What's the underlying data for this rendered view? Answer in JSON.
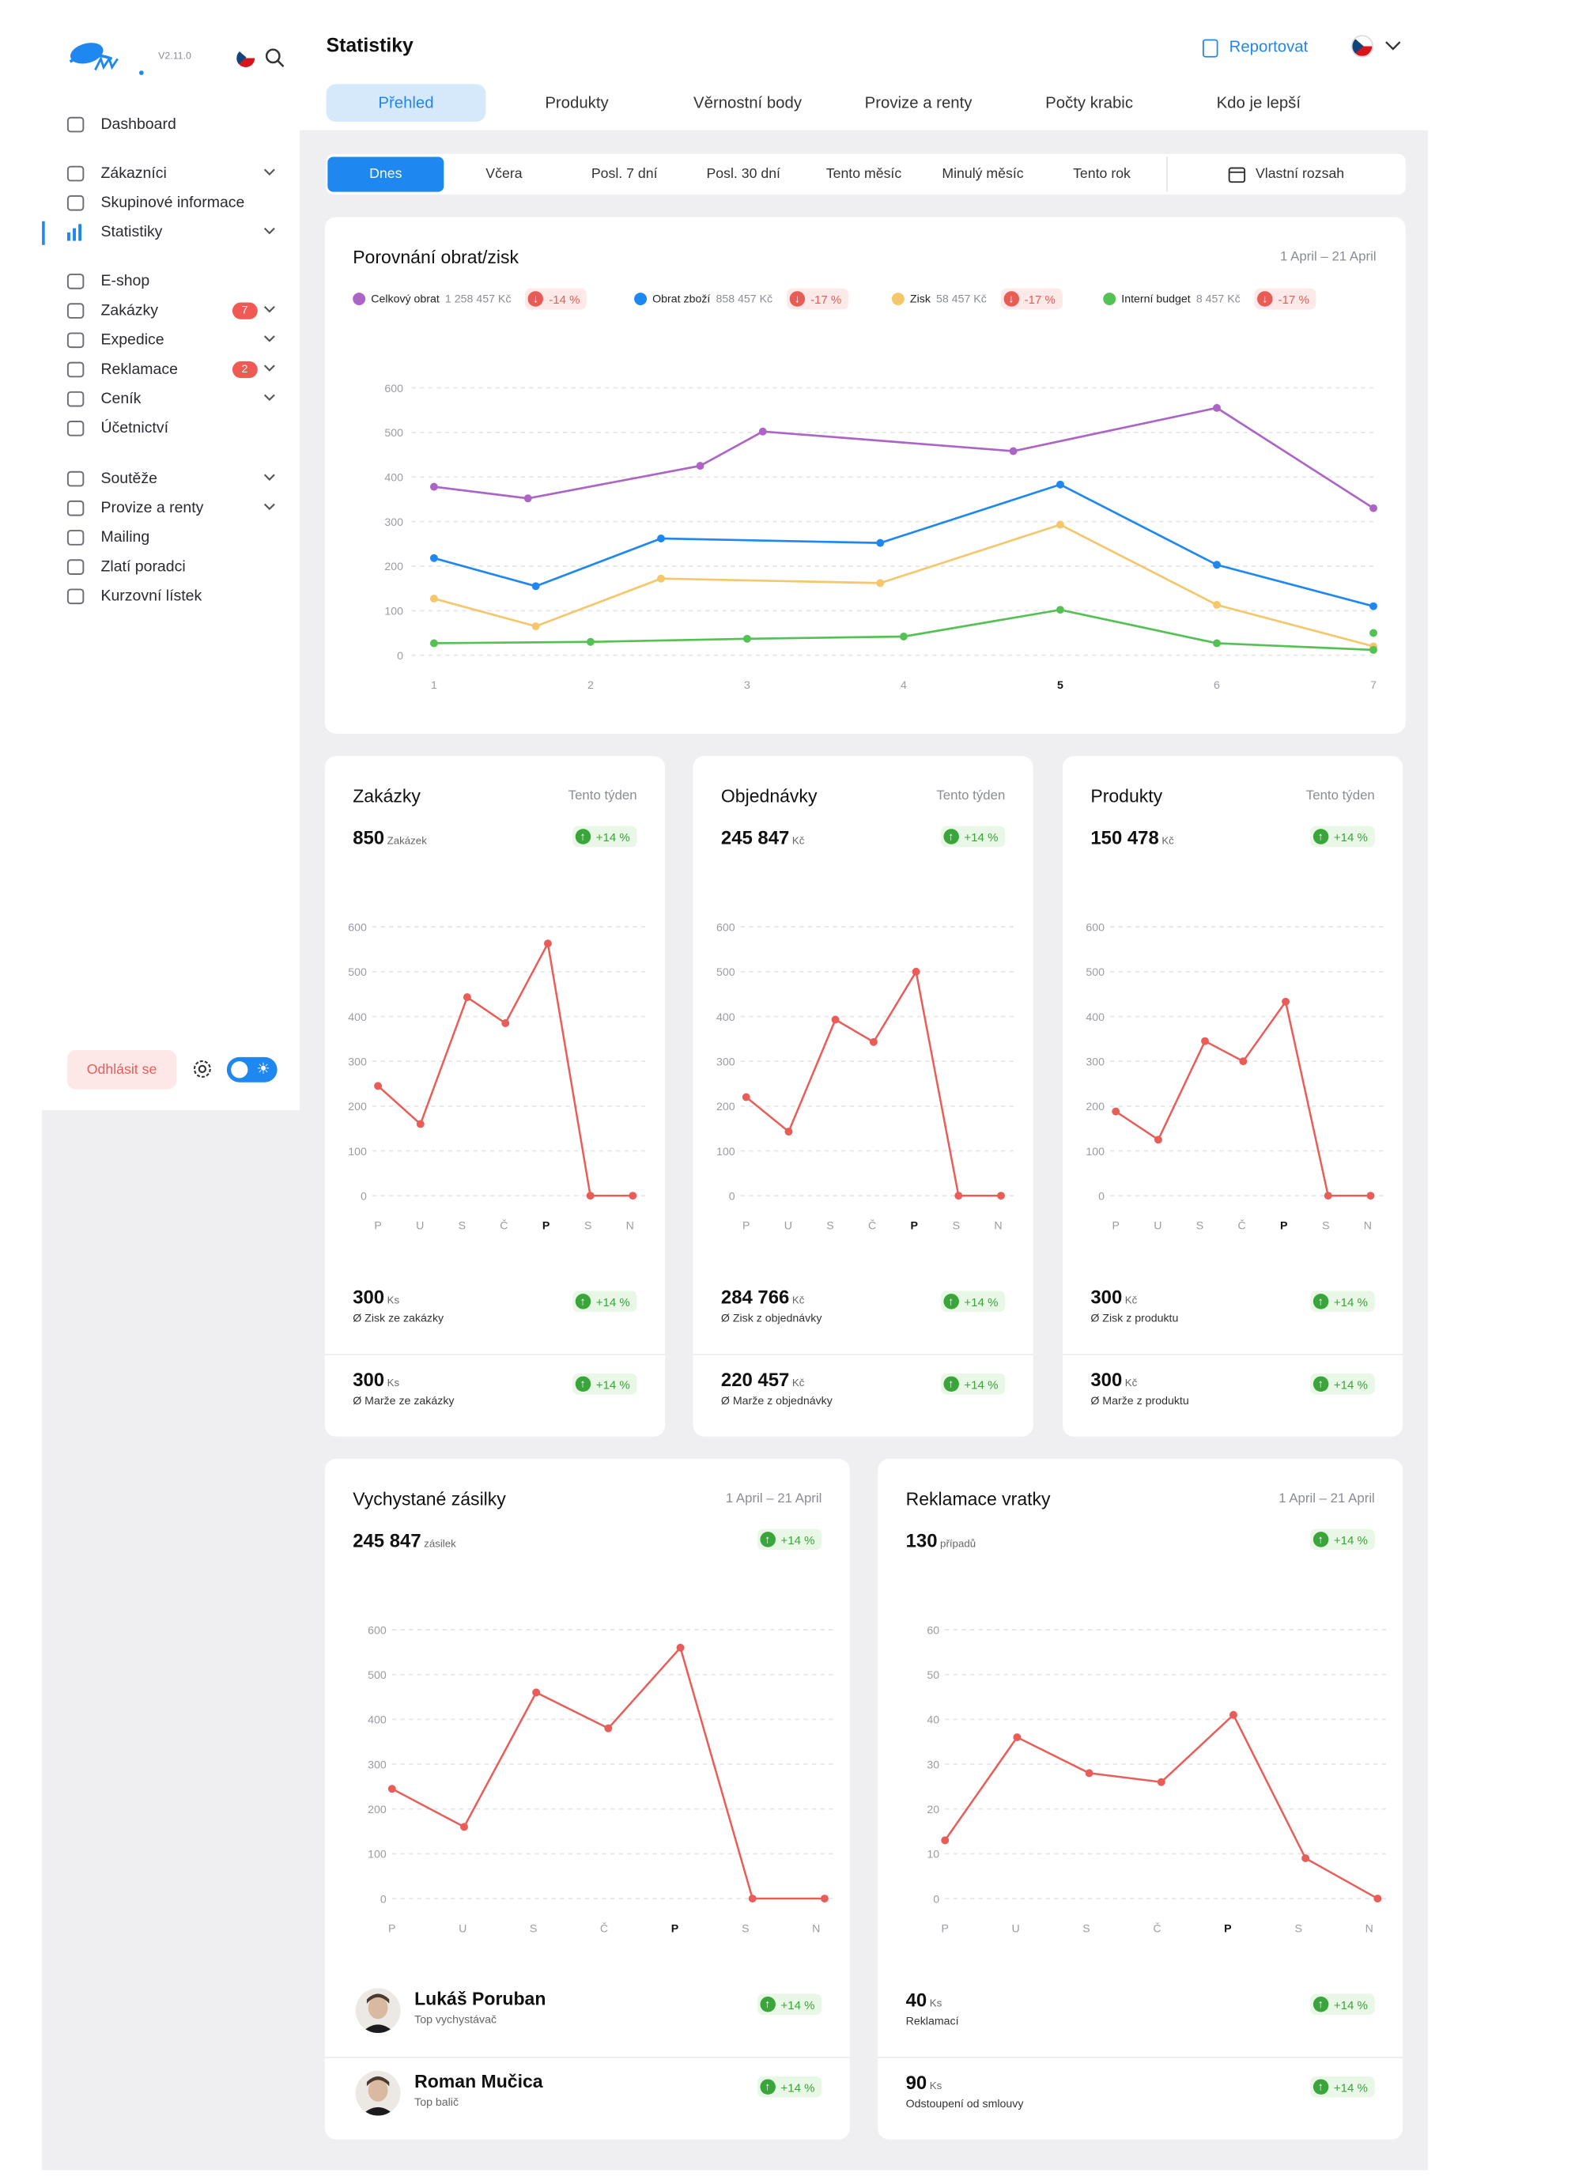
{
  "app": {
    "version": "V2.11.0"
  },
  "sidebar": {
    "items": [
      {
        "label": "Dashboard",
        "icon": "home-icon"
      },
      {
        "label": "Zákazníci",
        "icon": "customer-icon"
      },
      {
        "label": "Skupinové informace",
        "icon": "group-search-icon"
      },
      {
        "label": "Statistiky",
        "icon": "bar-chart-icon"
      },
      {
        "label": "E-shop",
        "icon": "cart-icon"
      },
      {
        "label": "Zakázky",
        "icon": "document-icon",
        "badge": "7"
      },
      {
        "label": "Expedice",
        "icon": "truck-icon"
      },
      {
        "label": "Reklamace",
        "icon": "return-icon",
        "badge": "2"
      },
      {
        "label": "Ceník",
        "icon": "clipboard-icon"
      },
      {
        "label": "Účetnictví",
        "icon": "folder-icon"
      },
      {
        "label": "Soutěže",
        "icon": "party-icon"
      },
      {
        "label": "Provize a renty",
        "icon": "chart-icon"
      },
      {
        "label": "Mailing",
        "icon": "mail-icon"
      },
      {
        "label": "Zlatí poradci",
        "icon": "star-icon"
      },
      {
        "label": "Kurzovní lístek",
        "icon": "list-icon"
      }
    ],
    "logout": "Odhlásit se"
  },
  "header": {
    "title": "Statistiky",
    "report": "Reportovat"
  },
  "tabs": [
    "Přehled",
    "Produkty",
    "Věrnostní body",
    "Provize a renty",
    "Počty krabic",
    "Kdo je lepší"
  ],
  "ranges": [
    "Dnes",
    "Včera",
    "Posl. 7 dní",
    "Posl. 30 dní",
    "Tento měsíc",
    "Minulý měsíc",
    "Tento rok",
    "Vlastní rozsah"
  ],
  "colors": {
    "accent": "#1e88f0",
    "up": "#3aa53a",
    "down": "#e85c57",
    "line": "#e95c57"
  },
  "main_chart": {
    "title": "Porovnání obrat/zisk",
    "date": "1 April – 21 April",
    "legend": [
      {
        "name": "Celkový obrat",
        "value": "1 258 457 Kč",
        "change": "-14 %",
        "color": "#ad64c7"
      },
      {
        "name": "Obrat zboží",
        "value": "858 457 Kč",
        "change": "-17 %",
        "color": "#1e88f0"
      },
      {
        "name": "Zisk",
        "value": "58 457 Kč",
        "change": "-17 %",
        "color": "#f5c66a"
      },
      {
        "name": "Interní budget",
        "value": "8 457 Kč",
        "change": "-17 %",
        "color": "#53c153"
      }
    ]
  },
  "cards": [
    {
      "title": "Zakázky",
      "period": "Tento týden",
      "value": "850",
      "unit": "Zakázek",
      "change": "+14 %",
      "row1": {
        "value": "300",
        "unit": "Ks",
        "label": "Ø Zisk ze zakázky",
        "change": "+14 %"
      },
      "row2": {
        "value": "300",
        "unit": "Ks",
        "label": "Ø Marže ze zakázky",
        "change": "+14 %"
      }
    },
    {
      "title": "Objednávky",
      "period": "Tento týden",
      "value": "245 847",
      "unit": "Kč",
      "change": "+14 %",
      "row1": {
        "value": "284 766",
        "unit": "Kč",
        "label": "Ø Zisk z objednávky",
        "change": "+14 %"
      },
      "row2": {
        "value": "220 457",
        "unit": "Kč",
        "label": "Ø Marže z objednávky",
        "change": "+14 %"
      }
    },
    {
      "title": "Produkty",
      "period": "Tento týden",
      "value": "150 478",
      "unit": "Kč",
      "change": "+14 %",
      "row1": {
        "value": "300",
        "unit": "Kč",
        "label": "Ø Zisk z produktu",
        "change": "+14 %"
      },
      "row2": {
        "value": "300",
        "unit": "Kč",
        "label": "Ø Marže z produktu",
        "change": "+14 %"
      }
    },
    {
      "title": "Vychystané zásilky",
      "period": "1 April – 21 April",
      "value": "245 847",
      "unit": "zásilek",
      "change": "+14 %",
      "row1": {
        "name": "Lukáš Poruban",
        "label": "Top vychystávač",
        "change": "+14 %"
      },
      "row2": {
        "name": "Roman Mučica",
        "label": "Top balič",
        "change": "+14 %"
      }
    },
    {
      "title": "Reklamace vratky",
      "period": "1 April – 21 April",
      "value": "130",
      "unit": "případů",
      "change": "+14 %",
      "row1": {
        "value": "40",
        "unit": "Ks",
        "label": "Reklamací",
        "change": "+14 %"
      },
      "row2": {
        "value": "90",
        "unit": "Ks",
        "label": "Odstoupení od smlouvy",
        "change": "+14 %"
      }
    }
  ],
  "chart_data": [
    {
      "type": "line",
      "title": "Porovnání obrat/zisk",
      "x": [
        1,
        1.6,
        2.7,
        3.1,
        4.7,
        5,
        6,
        7
      ],
      "ylim": [
        0,
        600
      ],
      "yticks": [
        0,
        100,
        200,
        300,
        400,
        500,
        600
      ],
      "xticks": [
        "1",
        "2",
        "3",
        "4",
        "5",
        "6",
        "7"
      ],
      "series": [
        {
          "name": "Celkový obrat",
          "color": "#ad64c7",
          "points": [
            [
              1,
              378
            ],
            [
              1.6,
              352
            ],
            [
              2.7,
              425
            ],
            [
              3.1,
              502
            ],
            [
              4.7,
              458
            ],
            [
              6,
              555
            ],
            [
              7,
              330
            ]
          ]
        },
        {
          "name": "Obrat zboží",
          "color": "#1e88f0",
          "points": [
            [
              1,
              218
            ],
            [
              1.65,
              155
            ],
            [
              2.45,
              262
            ],
            [
              3.85,
              252
            ],
            [
              5,
              383
            ],
            [
              6,
              203
            ],
            [
              7,
              110
            ]
          ]
        },
        {
          "name": "Zisk",
          "color": "#f5c66a",
          "points": [
            [
              1,
              127
            ],
            [
              1.65,
              65
            ],
            [
              2.45,
              172
            ],
            [
              3.85,
              162
            ],
            [
              5,
              293
            ],
            [
              6,
              113
            ],
            [
              7,
              20
            ]
          ]
        },
        {
          "name": "Interní budget",
          "color": "#53c153",
          "points": [
            [
              1,
              27
            ],
            [
              2,
              30
            ],
            [
              3,
              37
            ],
            [
              4,
              42
            ],
            [
              5,
              102
            ],
            [
              6,
              27
            ],
            [
              7,
              12
            ],
            [
              7,
              50
            ]
          ]
        }
      ]
    },
    {
      "type": "line",
      "title": "Zakázky",
      "categories": [
        "P",
        "U",
        "S",
        "Č",
        "P",
        "S",
        "N"
      ],
      "ylim": [
        0,
        600
      ],
      "yticks": [
        0,
        100,
        200,
        300,
        400,
        500,
        600
      ],
      "x": [
        0.5,
        1,
        1.55,
        2,
        2.5,
        3,
        3.5
      ],
      "values": [
        245,
        160,
        443,
        385,
        563,
        0,
        0
      ]
    },
    {
      "type": "line",
      "title": "Objednávky",
      "categories": [
        "P",
        "U",
        "S",
        "Č",
        "P",
        "S",
        "N"
      ],
      "ylim": [
        0,
        600
      ],
      "yticks": [
        0,
        100,
        200,
        300,
        400,
        500,
        600
      ],
      "x": [
        0.5,
        1,
        1.55,
        2,
        2.5,
        3,
        3.5
      ],
      "values": [
        220,
        143,
        393,
        343,
        500,
        0,
        0
      ]
    },
    {
      "type": "line",
      "title": "Produkty",
      "categories": [
        "P",
        "U",
        "S",
        "Č",
        "P",
        "S",
        "N"
      ],
      "ylim": [
        0,
        600
      ],
      "yticks": [
        0,
        100,
        200,
        300,
        400,
        500,
        600
      ],
      "x": [
        0.5,
        1,
        1.55,
        2,
        2.5,
        3,
        3.5
      ],
      "values": [
        188,
        125,
        345,
        300,
        433,
        0,
        0
      ]
    },
    {
      "type": "line",
      "title": "Vychystané zásilky",
      "categories": [
        "P",
        "U",
        "S",
        "Č",
        "P",
        "S",
        "N"
      ],
      "ylim": [
        0,
        600
      ],
      "yticks": [
        0,
        100,
        200,
        300,
        400,
        500,
        600
      ],
      "x": [
        0,
        0.5,
        1,
        1.5,
        2,
        2.5,
        3
      ],
      "values": [
        245,
        160,
        460,
        380,
        560,
        0,
        0
      ]
    },
    {
      "type": "line",
      "title": "Reklamace vratky",
      "categories": [
        "P",
        "U",
        "S",
        "Č",
        "P",
        "S",
        "N"
      ],
      "ylim": [
        0,
        60
      ],
      "yticks": [
        0,
        10,
        20,
        30,
        40,
        50,
        60
      ],
      "x": [
        0,
        0.5,
        1,
        1.5,
        2,
        2.5,
        3
      ],
      "values": [
        13,
        36,
        28,
        26,
        41,
        9,
        0
      ]
    }
  ]
}
